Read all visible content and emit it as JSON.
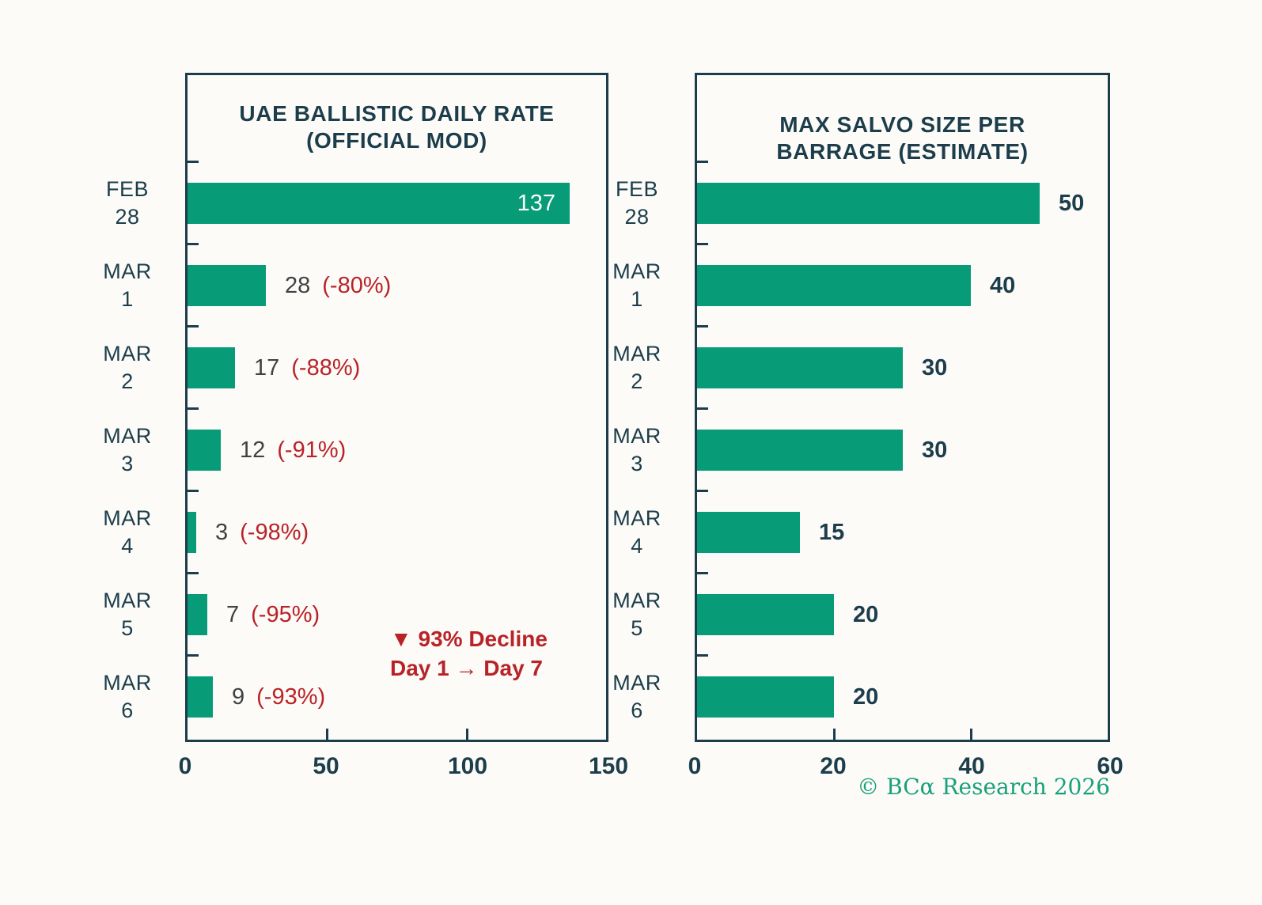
{
  "chart_data": [
    {
      "type": "bar",
      "orientation": "horizontal",
      "title_lines": [
        "UAE BALLISTIC DAILY RATE",
        "(OFFICIAL MOD)"
      ],
      "categories": [
        [
          "FEB",
          "28"
        ],
        [
          "MAR",
          "1"
        ],
        [
          "MAR",
          "2"
        ],
        [
          "MAR",
          "3"
        ],
        [
          "MAR",
          "4"
        ],
        [
          "MAR",
          "5"
        ],
        [
          "MAR",
          "6"
        ]
      ],
      "values": [
        137,
        28,
        17,
        12,
        3,
        7,
        9
      ],
      "bars": [
        {
          "label": "137",
          "pct": "",
          "inside": true
        },
        {
          "label": "28",
          "pct": "(-80%)",
          "inside": false
        },
        {
          "label": "17",
          "pct": "(-88%)",
          "inside": false
        },
        {
          "label": "12",
          "pct": "(-91%)",
          "inside": false
        },
        {
          "label": "3",
          "pct": "(-98%)",
          "inside": false
        },
        {
          "label": "7",
          "pct": "(-95%)",
          "inside": false
        },
        {
          "label": "9",
          "pct": "(-93%)",
          "inside": false
        }
      ],
      "xlim": [
        0,
        150
      ],
      "xticks": [
        0,
        50,
        100,
        150
      ],
      "grid": false,
      "annotation": {
        "line1": "▼ 93% Decline",
        "line2": "Day 1 → Day 7"
      }
    },
    {
      "type": "bar",
      "orientation": "horizontal",
      "title_lines": [
        "MAX SALVO SIZE PER",
        "BARRAGE (ESTIMATE)"
      ],
      "categories": [
        [
          "FEB",
          "28"
        ],
        [
          "MAR",
          "1"
        ],
        [
          "MAR",
          "2"
        ],
        [
          "MAR",
          "3"
        ],
        [
          "MAR",
          "4"
        ],
        [
          "MAR",
          "5"
        ],
        [
          "MAR",
          "6"
        ]
      ],
      "values": [
        50,
        40,
        30,
        30,
        15,
        20,
        20
      ],
      "bars": [
        {
          "label": "50",
          "pct": "",
          "inside": false
        },
        {
          "label": "40",
          "pct": "",
          "inside": false
        },
        {
          "label": "30",
          "pct": "",
          "inside": false
        },
        {
          "label": "30",
          "pct": "",
          "inside": false
        },
        {
          "label": "15",
          "pct": "",
          "inside": false
        },
        {
          "label": "20",
          "pct": "",
          "inside": false
        },
        {
          "label": "20",
          "pct": "",
          "inside": false
        }
      ],
      "xlim": [
        0,
        60
      ],
      "xticks": [
        0,
        20,
        40,
        60
      ],
      "grid": false,
      "annotation": null
    }
  ],
  "footer": {
    "text": "© BCα Research 2026"
  },
  "colors": {
    "background": "#fcfbf7",
    "bar_green": "#079b77",
    "navy": "#1c3d4b",
    "value_gray": "#3f4244",
    "red": "#b92328",
    "footer_green": "#18a07c"
  }
}
